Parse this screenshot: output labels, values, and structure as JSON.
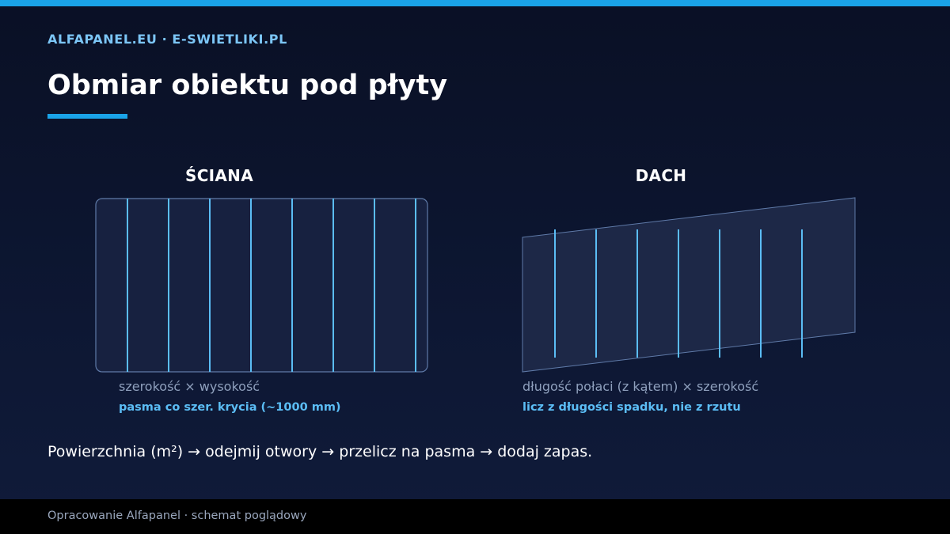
{
  "header": {
    "brand": "ALFAPANEL.EU · E-SWIETLIKI.PL",
    "title": "Obmiar obiektu pod płyty"
  },
  "wall": {
    "label": "ŚCIANA",
    "formula": "szerokość × wysokość",
    "note": "pasma co szer. krycia (~1000 mm)"
  },
  "roof": {
    "label": "DACH",
    "formula": "długość połaci (z kątem) × szerokość",
    "note": "licz z długości spadku, nie z rzutu"
  },
  "summary": "Powierzchnia (m²) → odejmij otwory → przelicz na pasma → dodaj zapas.",
  "footer": {
    "text": "Opracowanie Alfapanel · schemat poglądowy"
  },
  "colors": {
    "accent": "#1aa3e8",
    "stripe": "#5bbdf5",
    "background": "#0b1229"
  }
}
